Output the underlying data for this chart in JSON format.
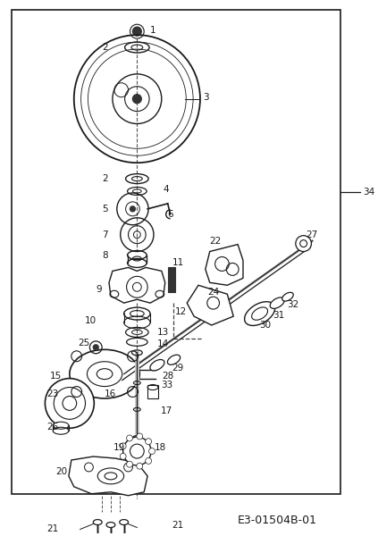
{
  "bg_color": "#ffffff",
  "diagram_code": "E3-01504B-01",
  "border": [
    10,
    10,
    390,
    555
  ],
  "line34": [
    395,
    215,
    415,
    215
  ],
  "lc": "#1a1a1a"
}
